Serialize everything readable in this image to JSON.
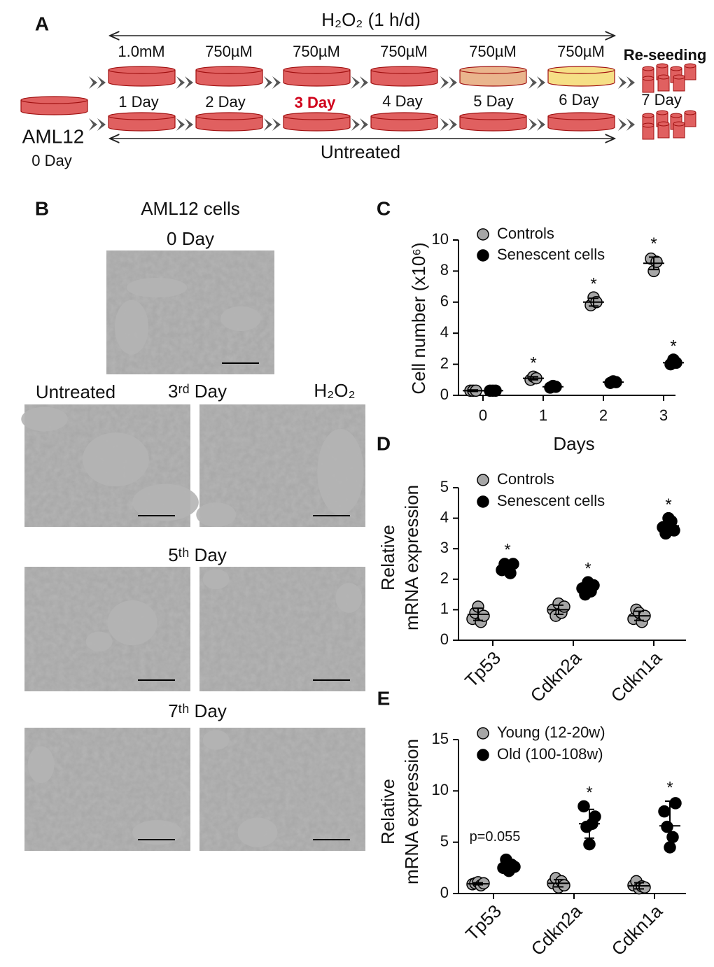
{
  "panel_a": {
    "letter": "A",
    "treatment": "H₂O₂ (1 h/d)",
    "doses": [
      "1.0mM",
      "750µM",
      "750µM",
      "750µM",
      "750µM",
      "750µM"
    ],
    "days": [
      "1 Day",
      "2 Day",
      "3 Day",
      "4 Day",
      "5 Day",
      "6 Day",
      "7 Day"
    ],
    "reseeding": "Re-seeding",
    "cell_line": "AML12",
    "start_day": "0 Day",
    "control": "Untreated"
  },
  "panel_b": {
    "letter": "B",
    "title": "AML12 cells",
    "baseline": "0 Day",
    "left_column": "Untreated",
    "right_column": "H₂O₂",
    "timepoints": [
      "3ʳᵈ Day",
      "5ᵗʰ Day",
      "7ᵗʰ Day"
    ]
  },
  "chart_data": [
    {
      "letter": "C",
      "type": "dot",
      "ylabel": [
        "Cell number (x10⁶)"
      ],
      "xlabel": "Days",
      "categories": [
        "0",
        "1",
        "2",
        "3"
      ],
      "ylim": [
        0,
        10
      ],
      "yticks": [
        0,
        2,
        4,
        6,
        8,
        10
      ],
      "series": [
        {
          "name": "Controls",
          "color": "#a6a6a6",
          "values": [
            [
              0.3,
              0.3,
              0.3
            ],
            [
              1.0,
              1.2,
              1.1
            ],
            [
              5.8,
              6.3,
              6.0
            ],
            [
              8.8,
              8.0,
              8.6
            ]
          ],
          "means": [
            0.3,
            1.1,
            6.0,
            8.5
          ],
          "sd": [
            0.05,
            0.1,
            0.25,
            0.4
          ],
          "significance": [
            null,
            "*",
            "*",
            "*"
          ]
        },
        {
          "name": "Senescent cells",
          "color": "#000000",
          "values": [
            [
              0.3,
              0.3,
              0.3
            ],
            [
              0.5,
              0.6,
              0.55
            ],
            [
              0.8,
              0.9,
              0.85
            ],
            [
              2.0,
              2.3,
              2.1
            ]
          ],
          "means": [
            0.3,
            0.55,
            0.85,
            2.1
          ],
          "sd": [
            0.05,
            0.05,
            0.05,
            0.15
          ],
          "significance": [
            null,
            null,
            null,
            "*"
          ]
        }
      ]
    },
    {
      "letter": "D",
      "type": "dot",
      "ylabel": [
        "Relative",
        "mRNA expression"
      ],
      "categories": [
        "Tp53",
        "Cdkn2a",
        "Cdkn1a"
      ],
      "ylim": [
        0,
        5
      ],
      "yticks": [
        0,
        1,
        2,
        3,
        4,
        5
      ],
      "series": [
        {
          "name": "Controls",
          "color": "#a6a6a6",
          "values": [
            [
              0.7,
              0.9,
              1.1,
              0.6,
              0.8
            ],
            [
              1.0,
              0.8,
              1.2,
              0.9,
              1.1
            ],
            [
              0.7,
              1.0,
              0.9,
              0.6,
              0.8
            ]
          ],
          "means": [
            0.85,
            1.0,
            0.8
          ],
          "sd": [
            0.2,
            0.15,
            0.15
          ],
          "significance": [
            null,
            null,
            null
          ]
        },
        {
          "name": "Senescent cells",
          "color": "#000000",
          "values": [
            [
              2.3,
              2.5,
              2.4,
              2.2,
              2.5
            ],
            [
              1.7,
              1.5,
              1.9,
              1.6,
              1.8
            ],
            [
              3.7,
              3.5,
              4.0,
              3.9,
              3.6
            ]
          ],
          "means": [
            2.4,
            1.7,
            3.75
          ],
          "sd": [
            0.12,
            0.15,
            0.2
          ],
          "significance": [
            "*",
            "*",
            "*"
          ]
        }
      ]
    },
    {
      "letter": "E",
      "type": "dot",
      "ylabel": [
        "Relative",
        "mRNA expression"
      ],
      "categories": [
        "Tp53",
        "Cdkn2a",
        "Cdkn1a"
      ],
      "ylim": [
        0,
        15
      ],
      "yticks": [
        0,
        5,
        10,
        15
      ],
      "series": [
        {
          "name": "Young (12-20w)",
          "color": "#a6a6a6",
          "values": [
            [
              0.9,
              1.0,
              1.1,
              0.8,
              1.0
            ],
            [
              1.0,
              1.5,
              0.6,
              1.2,
              0.8
            ],
            [
              0.8,
              1.2,
              0.5,
              0.7,
              0.6
            ]
          ],
          "means": [
            0.95,
            1.0,
            0.75
          ],
          "sd": [
            0.1,
            0.35,
            0.3
          ],
          "significance": [
            null,
            null,
            null
          ]
        },
        {
          "name": "Old (100-108w)",
          "color": "#000000",
          "values": [
            [
              2.5,
              3.3,
              2.2,
              2.8,
              2.6
            ],
            [
              8.5,
              6.5,
              4.8,
              6.8,
              7.5
            ],
            [
              8.0,
              6.5,
              4.5,
              5.5,
              8.8
            ]
          ],
          "means": [
            2.7,
            6.8,
            6.6
          ],
          "sd": [
            0.45,
            1.4,
            2.4
          ],
          "significance": [
            "p=0.055",
            "*",
            "*"
          ]
        }
      ]
    }
  ]
}
